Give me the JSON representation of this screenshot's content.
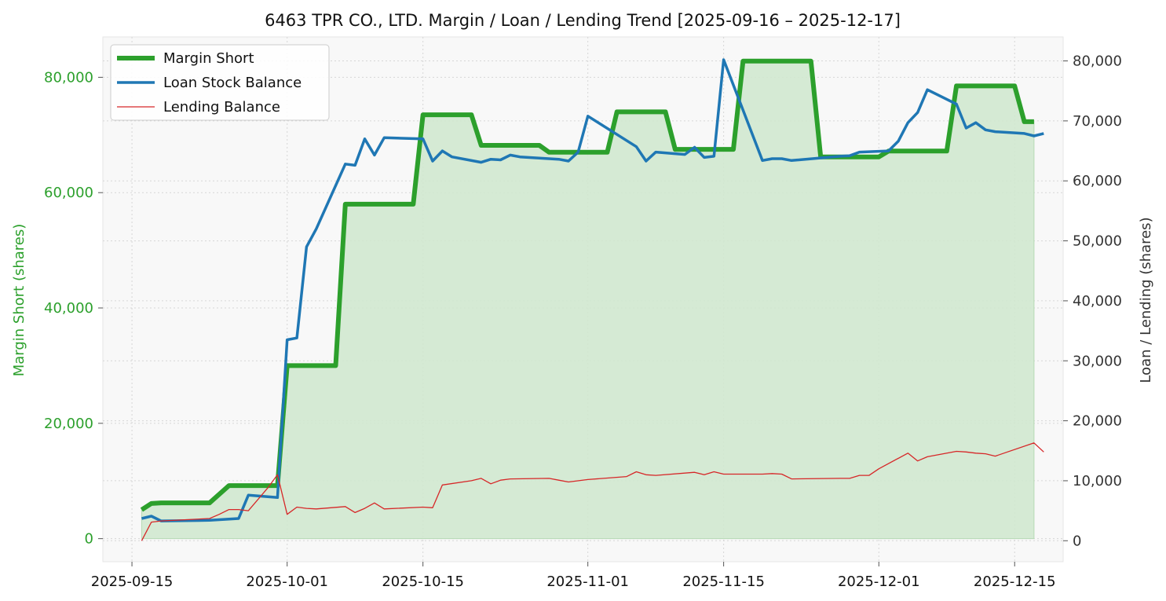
{
  "chart_data": {
    "type": "line",
    "title": "6463 TPR CO., LTD. Margin / Loan / Lending Trend [2025-09-16 – 2025-12-17]",
    "y_left_label": "Margin Short (shares)",
    "y_right_label": "Loan / Lending (shares)",
    "y_left_range": [
      -4000,
      87000
    ],
    "y_right_range": [
      -3500,
      84000
    ],
    "y_left_ticks": [
      0,
      20000,
      40000,
      60000,
      80000
    ],
    "y_left_tick_labels": [
      "0",
      "20,000",
      "40,000",
      "60,000",
      "80,000"
    ],
    "y_right_ticks": [
      0,
      10000,
      20000,
      30000,
      40000,
      50000,
      60000,
      70000,
      80000
    ],
    "y_right_tick_labels": [
      "0",
      "10,000",
      "20,000",
      "30,000",
      "40,000",
      "50,000",
      "60,000",
      "70,000",
      "80,000"
    ],
    "x_range": [
      "2025-09-12",
      "2025-12-20"
    ],
    "x_ticks": [
      "2025-09-15",
      "2025-10-01",
      "2025-10-15",
      "2025-11-01",
      "2025-11-15",
      "2025-12-01",
      "2025-12-15"
    ],
    "grid": true,
    "legend_position": "top-left",
    "colors": {
      "margin": "#2ca02c",
      "margin_fill": "#d0e8cf",
      "loan": "#1f77b4",
      "lending": "#d62728",
      "left_axis_text": "#2ca02c",
      "right_axis_text": "#333333",
      "plot_bg": "#f8f8f8",
      "grid": "#d6d6d6"
    },
    "series": [
      {
        "name": "Margin Short",
        "axis": "left",
        "points": [
          [
            "2025-09-16",
            5000
          ],
          [
            "2025-09-17",
            6100
          ],
          [
            "2025-09-18",
            6200
          ],
          [
            "2025-09-22",
            6200
          ],
          [
            "2025-09-23",
            6200
          ],
          [
            "2025-09-25",
            9200
          ],
          [
            "2025-09-29",
            9200
          ],
          [
            "2025-09-30",
            9200
          ],
          [
            "2025-10-01",
            30000
          ],
          [
            "2025-10-06",
            30000
          ],
          [
            "2025-10-07",
            58000
          ],
          [
            "2025-10-14",
            58000
          ],
          [
            "2025-10-15",
            73500
          ],
          [
            "2025-10-20",
            73500
          ],
          [
            "2025-10-21",
            68200
          ],
          [
            "2025-10-27",
            68200
          ],
          [
            "2025-10-28",
            67000
          ],
          [
            "2025-11-03",
            67000
          ],
          [
            "2025-11-04",
            74000
          ],
          [
            "2025-11-09",
            74000
          ],
          [
            "2025-11-10",
            67500
          ],
          [
            "2025-11-16",
            67500
          ],
          [
            "2025-11-17",
            82800
          ],
          [
            "2025-11-24",
            82800
          ],
          [
            "2025-11-25",
            66200
          ],
          [
            "2025-12-01",
            66200
          ],
          [
            "2025-12-02",
            67200
          ],
          [
            "2025-12-08",
            67200
          ],
          [
            "2025-12-09",
            78500
          ],
          [
            "2025-12-15",
            78500
          ],
          [
            "2025-12-16",
            72300
          ],
          [
            "2025-12-17",
            72300
          ]
        ]
      },
      {
        "name": "Loan Stock Balance",
        "axis": "right",
        "points": [
          [
            "2025-09-16",
            3700
          ],
          [
            "2025-09-17",
            4100
          ],
          [
            "2025-09-18",
            3300
          ],
          [
            "2025-09-23",
            3400
          ],
          [
            "2025-09-26",
            3700
          ],
          [
            "2025-09-27",
            7600
          ],
          [
            "2025-09-30",
            7200
          ],
          [
            "2025-10-01",
            33500
          ],
          [
            "2025-10-02",
            33800
          ],
          [
            "2025-10-03",
            49000
          ],
          [
            "2025-10-04",
            52000
          ],
          [
            "2025-10-07",
            62800
          ],
          [
            "2025-10-08",
            62600
          ],
          [
            "2025-10-09",
            67000
          ],
          [
            "2025-10-10",
            64300
          ],
          [
            "2025-10-11",
            67200
          ],
          [
            "2025-10-15",
            67000
          ],
          [
            "2025-10-16",
            63300
          ],
          [
            "2025-10-17",
            65000
          ],
          [
            "2025-10-18",
            64000
          ],
          [
            "2025-10-21",
            63100
          ],
          [
            "2025-10-22",
            63600
          ],
          [
            "2025-10-23",
            63500
          ],
          [
            "2025-10-24",
            64300
          ],
          [
            "2025-10-25",
            64000
          ],
          [
            "2025-10-29",
            63600
          ],
          [
            "2025-10-30",
            63300
          ],
          [
            "2025-10-31",
            64800
          ],
          [
            "2025-11-01",
            70800
          ],
          [
            "2025-11-06",
            65700
          ],
          [
            "2025-11-07",
            63300
          ],
          [
            "2025-11-08",
            64800
          ],
          [
            "2025-11-11",
            64400
          ],
          [
            "2025-11-12",
            65600
          ],
          [
            "2025-11-13",
            63900
          ],
          [
            "2025-11-14",
            64100
          ],
          [
            "2025-11-15",
            80200
          ],
          [
            "2025-11-19",
            63400
          ],
          [
            "2025-11-20",
            63700
          ],
          [
            "2025-11-21",
            63700
          ],
          [
            "2025-11-22",
            63400
          ],
          [
            "2025-11-27",
            64100
          ],
          [
            "2025-11-28",
            64200
          ],
          [
            "2025-11-29",
            64800
          ],
          [
            "2025-12-02",
            65000
          ],
          [
            "2025-12-03",
            66600
          ],
          [
            "2025-12-04",
            69700
          ],
          [
            "2025-12-05",
            71400
          ],
          [
            "2025-12-06",
            75200
          ],
          [
            "2025-12-09",
            72800
          ],
          [
            "2025-12-10",
            68800
          ],
          [
            "2025-12-11",
            69700
          ],
          [
            "2025-12-12",
            68500
          ],
          [
            "2025-12-13",
            68200
          ],
          [
            "2025-12-16",
            67900
          ],
          [
            "2025-12-17",
            67500
          ],
          [
            "2025-12-18",
            67900
          ]
        ]
      },
      {
        "name": "Lending Balance",
        "axis": "right",
        "points": [
          [
            "2025-09-16",
            0
          ],
          [
            "2025-09-17",
            3100
          ],
          [
            "2025-09-18",
            3300
          ],
          [
            "2025-09-23",
            3700
          ],
          [
            "2025-09-24",
            4400
          ],
          [
            "2025-09-25",
            5200
          ],
          [
            "2025-09-26",
            5200
          ],
          [
            "2025-09-27",
            5000
          ],
          [
            "2025-09-29",
            8800
          ],
          [
            "2025-09-30",
            11000
          ],
          [
            "2025-10-01",
            4400
          ],
          [
            "2025-10-02",
            5600
          ],
          [
            "2025-10-03",
            5400
          ],
          [
            "2025-10-04",
            5300
          ],
          [
            "2025-10-07",
            5700
          ],
          [
            "2025-10-08",
            4700
          ],
          [
            "2025-10-09",
            5400
          ],
          [
            "2025-10-10",
            6300
          ],
          [
            "2025-10-11",
            5300
          ],
          [
            "2025-10-15",
            5600
          ],
          [
            "2025-10-16",
            5500
          ],
          [
            "2025-10-17",
            9300
          ],
          [
            "2025-10-20",
            10000
          ],
          [
            "2025-10-21",
            10400
          ],
          [
            "2025-10-22",
            9500
          ],
          [
            "2025-10-23",
            10100
          ],
          [
            "2025-10-24",
            10300
          ],
          [
            "2025-10-28",
            10400
          ],
          [
            "2025-10-29",
            10100
          ],
          [
            "2025-10-30",
            9800
          ],
          [
            "2025-11-01",
            10200
          ],
          [
            "2025-11-05",
            10700
          ],
          [
            "2025-11-06",
            11500
          ],
          [
            "2025-11-07",
            11000
          ],
          [
            "2025-11-08",
            10900
          ],
          [
            "2025-11-12",
            11400
          ],
          [
            "2025-11-13",
            11000
          ],
          [
            "2025-11-14",
            11500
          ],
          [
            "2025-11-15",
            11100
          ],
          [
            "2025-11-19",
            11100
          ],
          [
            "2025-11-20",
            11200
          ],
          [
            "2025-11-21",
            11100
          ],
          [
            "2025-11-22",
            10300
          ],
          [
            "2025-11-27",
            10400
          ],
          [
            "2025-11-28",
            10400
          ],
          [
            "2025-11-29",
            10900
          ],
          [
            "2025-11-30",
            10900
          ],
          [
            "2025-12-01",
            12000
          ],
          [
            "2025-12-04",
            14600
          ],
          [
            "2025-12-05",
            13300
          ],
          [
            "2025-12-06",
            14000
          ],
          [
            "2025-12-09",
            14900
          ],
          [
            "2025-12-10",
            14800
          ],
          [
            "2025-12-11",
            14600
          ],
          [
            "2025-12-12",
            14500
          ],
          [
            "2025-12-13",
            14100
          ],
          [
            "2025-12-17",
            16300
          ],
          [
            "2025-12-18",
            14800
          ]
        ]
      }
    ]
  }
}
